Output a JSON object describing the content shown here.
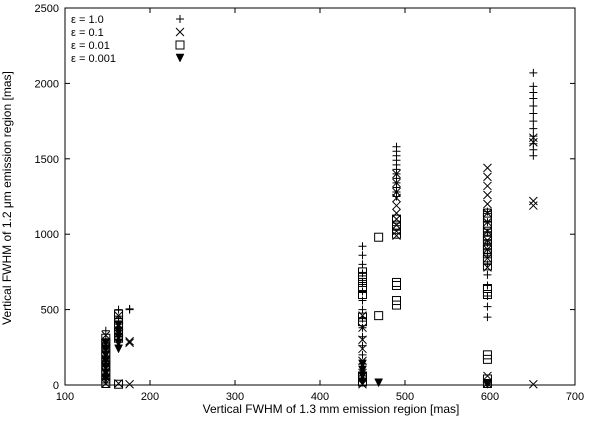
{
  "chart_data": {
    "type": "scatter",
    "title": "",
    "xlabel": "Vertical FWHM of 1.3 mm emission region [mas]",
    "ylabel": "Vertical FWHM of 1.2 μm emission region [mas]",
    "xlim": [
      100,
      700
    ],
    "ylim": [
      0,
      2500
    ],
    "xticks": [
      100,
      200,
      300,
      400,
      500,
      600,
      700
    ],
    "yticks": [
      0,
      500,
      1000,
      1500,
      2000,
      2500
    ],
    "grid": false,
    "legend_position": "top-left",
    "series": [
      {
        "name": "ε = 1.0",
        "marker": "plus",
        "points": [
          [
            148,
            360
          ],
          [
            148,
            300
          ],
          [
            148,
            240
          ],
          [
            148,
            180
          ],
          [
            148,
            120
          ],
          [
            148,
            60
          ],
          [
            163,
            500
          ],
          [
            163,
            440
          ],
          [
            163,
            380
          ],
          [
            163,
            320
          ],
          [
            176,
            505
          ],
          [
            176,
            500
          ],
          [
            450,
            920
          ],
          [
            450,
            860
          ],
          [
            450,
            800
          ],
          [
            450,
            740
          ],
          [
            450,
            680
          ],
          [
            450,
            620
          ],
          [
            450,
            560
          ],
          [
            450,
            500
          ],
          [
            450,
            440
          ],
          [
            450,
            380
          ],
          [
            450,
            320
          ],
          [
            450,
            260
          ],
          [
            450,
            200
          ],
          [
            450,
            140
          ],
          [
            490,
            1580
          ],
          [
            490,
            1550
          ],
          [
            490,
            1520
          ],
          [
            490,
            1490
          ],
          [
            490,
            1460
          ],
          [
            490,
            1430
          ],
          [
            490,
            1400
          ],
          [
            490,
            1370
          ],
          [
            490,
            1340
          ],
          [
            490,
            1310
          ],
          [
            490,
            1280
          ],
          [
            490,
            1250
          ],
          [
            597,
            1150
          ],
          [
            597,
            1080
          ],
          [
            597,
            1010
          ],
          [
            597,
            940
          ],
          [
            597,
            870
          ],
          [
            597,
            800
          ],
          [
            597,
            730
          ],
          [
            597,
            660
          ],
          [
            597,
            590
          ],
          [
            597,
            520
          ],
          [
            597,
            450
          ],
          [
            651,
            2070
          ],
          [
            651,
            1980
          ],
          [
            651,
            1940
          ],
          [
            651,
            1900
          ],
          [
            651,
            1850
          ],
          [
            651,
            1800
          ],
          [
            651,
            1750
          ],
          [
            651,
            1700
          ],
          [
            651,
            1650
          ],
          [
            651,
            1600
          ],
          [
            651,
            1560
          ],
          [
            651,
            1520
          ]
        ]
      },
      {
        "name": "ε = 0.1",
        "marker": "cross",
        "points": [
          [
            148,
            330
          ],
          [
            148,
            250
          ],
          [
            148,
            170
          ],
          [
            148,
            90
          ],
          [
            148,
            10
          ],
          [
            163,
            460
          ],
          [
            163,
            400
          ],
          [
            163,
            340
          ],
          [
            163,
            10
          ],
          [
            176,
            290
          ],
          [
            176,
            280
          ],
          [
            176,
            5
          ],
          [
            450,
            460
          ],
          [
            450,
            380
          ],
          [
            450,
            300
          ],
          [
            450,
            240
          ],
          [
            450,
            160
          ],
          [
            450,
            80
          ],
          [
            450,
            5
          ],
          [
            490,
            1400
          ],
          [
            490,
            1340
          ],
          [
            490,
            1280
          ],
          [
            490,
            1240
          ],
          [
            490,
            1190
          ],
          [
            490,
            1140
          ],
          [
            490,
            1100
          ],
          [
            490,
            1060
          ],
          [
            490,
            1020
          ],
          [
            490,
            990
          ],
          [
            597,
            1440
          ],
          [
            597,
            1380
          ],
          [
            597,
            1320
          ],
          [
            597,
            1260
          ],
          [
            597,
            1200
          ],
          [
            597,
            1140
          ],
          [
            597,
            1080
          ],
          [
            597,
            1020
          ],
          [
            597,
            960
          ],
          [
            597,
            900
          ],
          [
            597,
            840
          ],
          [
            597,
            780
          ],
          [
            597,
            60
          ],
          [
            597,
            10
          ],
          [
            651,
            1640
          ],
          [
            651,
            1610
          ],
          [
            651,
            1220
          ],
          [
            651,
            1190
          ],
          [
            651,
            5
          ]
        ]
      },
      {
        "name": "ε = 0.01",
        "marker": "square",
        "points": [
          [
            148,
            310
          ],
          [
            148,
            280
          ],
          [
            148,
            250
          ],
          [
            148,
            220
          ],
          [
            148,
            190
          ],
          [
            148,
            160
          ],
          [
            148,
            130
          ],
          [
            148,
            100
          ],
          [
            148,
            70
          ],
          [
            148,
            40
          ],
          [
            148,
            10
          ],
          [
            163,
            470
          ],
          [
            163,
            430
          ],
          [
            163,
            390
          ],
          [
            163,
            350
          ],
          [
            163,
            310
          ],
          [
            163,
            5
          ],
          [
            450,
            750
          ],
          [
            450,
            720
          ],
          [
            450,
            680
          ],
          [
            450,
            640
          ],
          [
            450,
            600
          ],
          [
            450,
            450
          ],
          [
            450,
            420
          ],
          [
            450,
            60
          ],
          [
            450,
            20
          ],
          [
            469,
            980
          ],
          [
            469,
            460
          ],
          [
            490,
            1100
          ],
          [
            490,
            1060
          ],
          [
            490,
            1030
          ],
          [
            490,
            1000
          ],
          [
            490,
            680
          ],
          [
            490,
            660
          ],
          [
            490,
            560
          ],
          [
            490,
            530
          ],
          [
            597,
            1140
          ],
          [
            597,
            1110
          ],
          [
            597,
            1060
          ],
          [
            597,
            1020
          ],
          [
            597,
            990
          ],
          [
            597,
            960
          ],
          [
            597,
            930
          ],
          [
            597,
            900
          ],
          [
            597,
            870
          ],
          [
            597,
            830
          ],
          [
            597,
            790
          ],
          [
            597,
            640
          ],
          [
            597,
            600
          ],
          [
            597,
            200
          ],
          [
            597,
            170
          ],
          [
            597,
            40
          ],
          [
            597,
            10
          ]
        ]
      },
      {
        "name": "ε = 0.001",
        "marker": "triangle-down",
        "points": [
          [
            148,
            280
          ],
          [
            148,
            240
          ],
          [
            148,
            200
          ],
          [
            148,
            160
          ],
          [
            148,
            120
          ],
          [
            148,
            80
          ],
          [
            148,
            40
          ],
          [
            163,
            400
          ],
          [
            163,
            360
          ],
          [
            163,
            320
          ],
          [
            163,
            280
          ],
          [
            163,
            240
          ],
          [
            450,
            140
          ],
          [
            450,
            100
          ],
          [
            450,
            60
          ],
          [
            450,
            20
          ],
          [
            469,
            15
          ],
          [
            597,
            5
          ]
        ]
      }
    ]
  }
}
